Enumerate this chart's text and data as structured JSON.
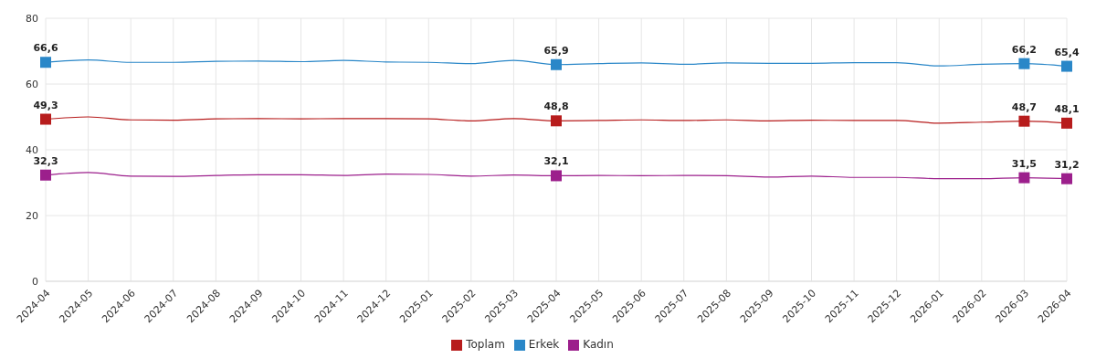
{
  "chart_data": {
    "type": "line",
    "categories": [
      "2024-04",
      "2024-05",
      "2024-06",
      "2024-07",
      "2024-08",
      "2024-09",
      "2024-10",
      "2024-11",
      "2024-12",
      "2025-01",
      "2025-02",
      "2025-03",
      "2025-04",
      "2025-05",
      "2025-06",
      "2025-07",
      "2025-08",
      "2025-09",
      "2025-10",
      "2025-11",
      "2025-12",
      "2026-01",
      "2026-02",
      "2026-03",
      "2026-04"
    ],
    "series": [
      {
        "name": "Toplam",
        "color": "#b71c1c",
        "values": [
          49.3,
          50.0,
          49.1,
          49.0,
          49.4,
          49.5,
          49.4,
          49.5,
          49.5,
          49.4,
          48.8,
          49.5,
          48.8,
          48.9,
          49.1,
          48.9,
          49.1,
          48.8,
          49.0,
          48.9,
          48.9,
          48.1,
          48.4,
          48.7,
          48.1
        ],
        "value_labels": [
          "49,3",
          null,
          null,
          null,
          null,
          null,
          null,
          null,
          null,
          null,
          null,
          null,
          "48,8",
          null,
          null,
          null,
          null,
          null,
          null,
          null,
          null,
          null,
          null,
          "48,7",
          "48,1"
        ]
      },
      {
        "name": "Erkek",
        "color": "#2a87c8",
        "values": [
          66.6,
          67.3,
          66.6,
          66.6,
          66.9,
          67.0,
          66.8,
          67.2,
          66.7,
          66.6,
          66.2,
          67.2,
          65.9,
          66.2,
          66.4,
          66.0,
          66.4,
          66.3,
          66.3,
          66.5,
          66.5,
          65.5,
          66.0,
          66.2,
          65.4
        ],
        "value_labels": [
          "66,6",
          null,
          null,
          null,
          null,
          null,
          null,
          null,
          null,
          null,
          null,
          null,
          "65,9",
          null,
          null,
          null,
          null,
          null,
          null,
          null,
          null,
          null,
          null,
          "66,2",
          "65,4"
        ]
      },
      {
        "name": "Kadın",
        "color": "#9c1f8c",
        "values": [
          32.3,
          33.1,
          32.0,
          31.9,
          32.2,
          32.4,
          32.4,
          32.2,
          32.6,
          32.5,
          32.0,
          32.3,
          32.1,
          32.2,
          32.1,
          32.2,
          32.1,
          31.7,
          32.0,
          31.6,
          31.6,
          31.2,
          31.2,
          31.5,
          31.2
        ],
        "value_labels": [
          "32,3",
          null,
          null,
          null,
          null,
          null,
          null,
          null,
          null,
          null,
          null,
          null,
          "32,1",
          null,
          null,
          null,
          null,
          null,
          null,
          null,
          null,
          null,
          null,
          "31,5",
          "31,2"
        ]
      }
    ],
    "ylim": [
      0,
      80
    ],
    "yticks": [
      0,
      20,
      40,
      60,
      80
    ],
    "grid": true,
    "legend": "bottom",
    "line_style": "solid"
  }
}
